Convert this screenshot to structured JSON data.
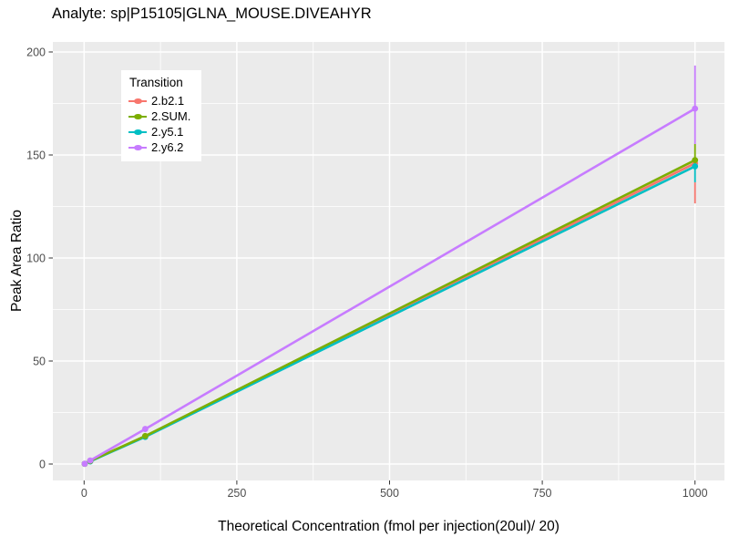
{
  "page": {
    "background": "#FFFFFF",
    "panel_background": "#EBEBEB",
    "gridline_color": "#FFFFFF",
    "tick_color": "#333333",
    "tick_label_color": "#4D4D4D"
  },
  "chart_data": {
    "type": "line",
    "title": "Analyte: sp|P15105|GLNA_MOUSE.DIVEAHYR",
    "xlabel": "Theoretical Concentration (fmol per injection(20ul)/ 20)",
    "ylabel": "Peak Area Ratio",
    "xlim": [
      -51,
      1048
    ],
    "ylim": [
      -8.5,
      204
    ],
    "xticks": [
      0,
      250,
      500,
      750,
      1000
    ],
    "yticks": [
      0,
      50,
      100,
      150,
      200
    ],
    "x_minor_ticks": [
      125,
      375,
      625,
      875
    ],
    "y_minor_ticks": [
      25,
      75,
      125,
      175
    ],
    "grid": "on",
    "legend": {
      "title": "Transition",
      "position": "top-left-inside",
      "entries": [
        {
          "label": "2.b2.1",
          "color": "#F8766D"
        },
        {
          "label": "2.SUM.",
          "color": "#7CAE00"
        },
        {
          "label": "2.y5.1",
          "color": "#00BFC4"
        },
        {
          "label": "2.y6.2",
          "color": "#C77CFF"
        }
      ]
    },
    "series": [
      {
        "name": "2.b2.1",
        "color": "#F8766D",
        "x": [
          1,
          10,
          100,
          1000
        ],
        "y": [
          0.1,
          1.4,
          13.4,
          146.0
        ]
      },
      {
        "name": "2.y5.1",
        "color": "#00BFC4",
        "x": [
          1,
          10,
          100,
          1000
        ],
        "y": [
          0.1,
          1.3,
          13.2,
          144.5
        ]
      },
      {
        "name": "2.SUM.",
        "color": "#7CAE00",
        "x": [
          1,
          10,
          100,
          1000
        ],
        "y": [
          0.12,
          1.5,
          13.6,
          147.5
        ]
      },
      {
        "name": "2.y6.2",
        "color": "#C77CFF",
        "x": [
          1,
          10,
          100,
          1000
        ],
        "y": [
          0.15,
          1.7,
          17.0,
          172.5
        ]
      }
    ],
    "error_bar_x": 1000,
    "error_bar_segments": [
      {
        "name": "2.y6.2",
        "color": "#C77CFF",
        "from": 155.3,
        "to": 193.4
      },
      {
        "name": "2.SUM.",
        "color": "#7CAE00",
        "from": 146.5,
        "to": 155.3
      },
      {
        "name": "2.y5.1",
        "color": "#00BFC4",
        "from": 136.7,
        "to": 146.5
      },
      {
        "name": "2.b2.1",
        "color": "#F8766D",
        "from": 126.5,
        "to": 136.7
      }
    ]
  }
}
